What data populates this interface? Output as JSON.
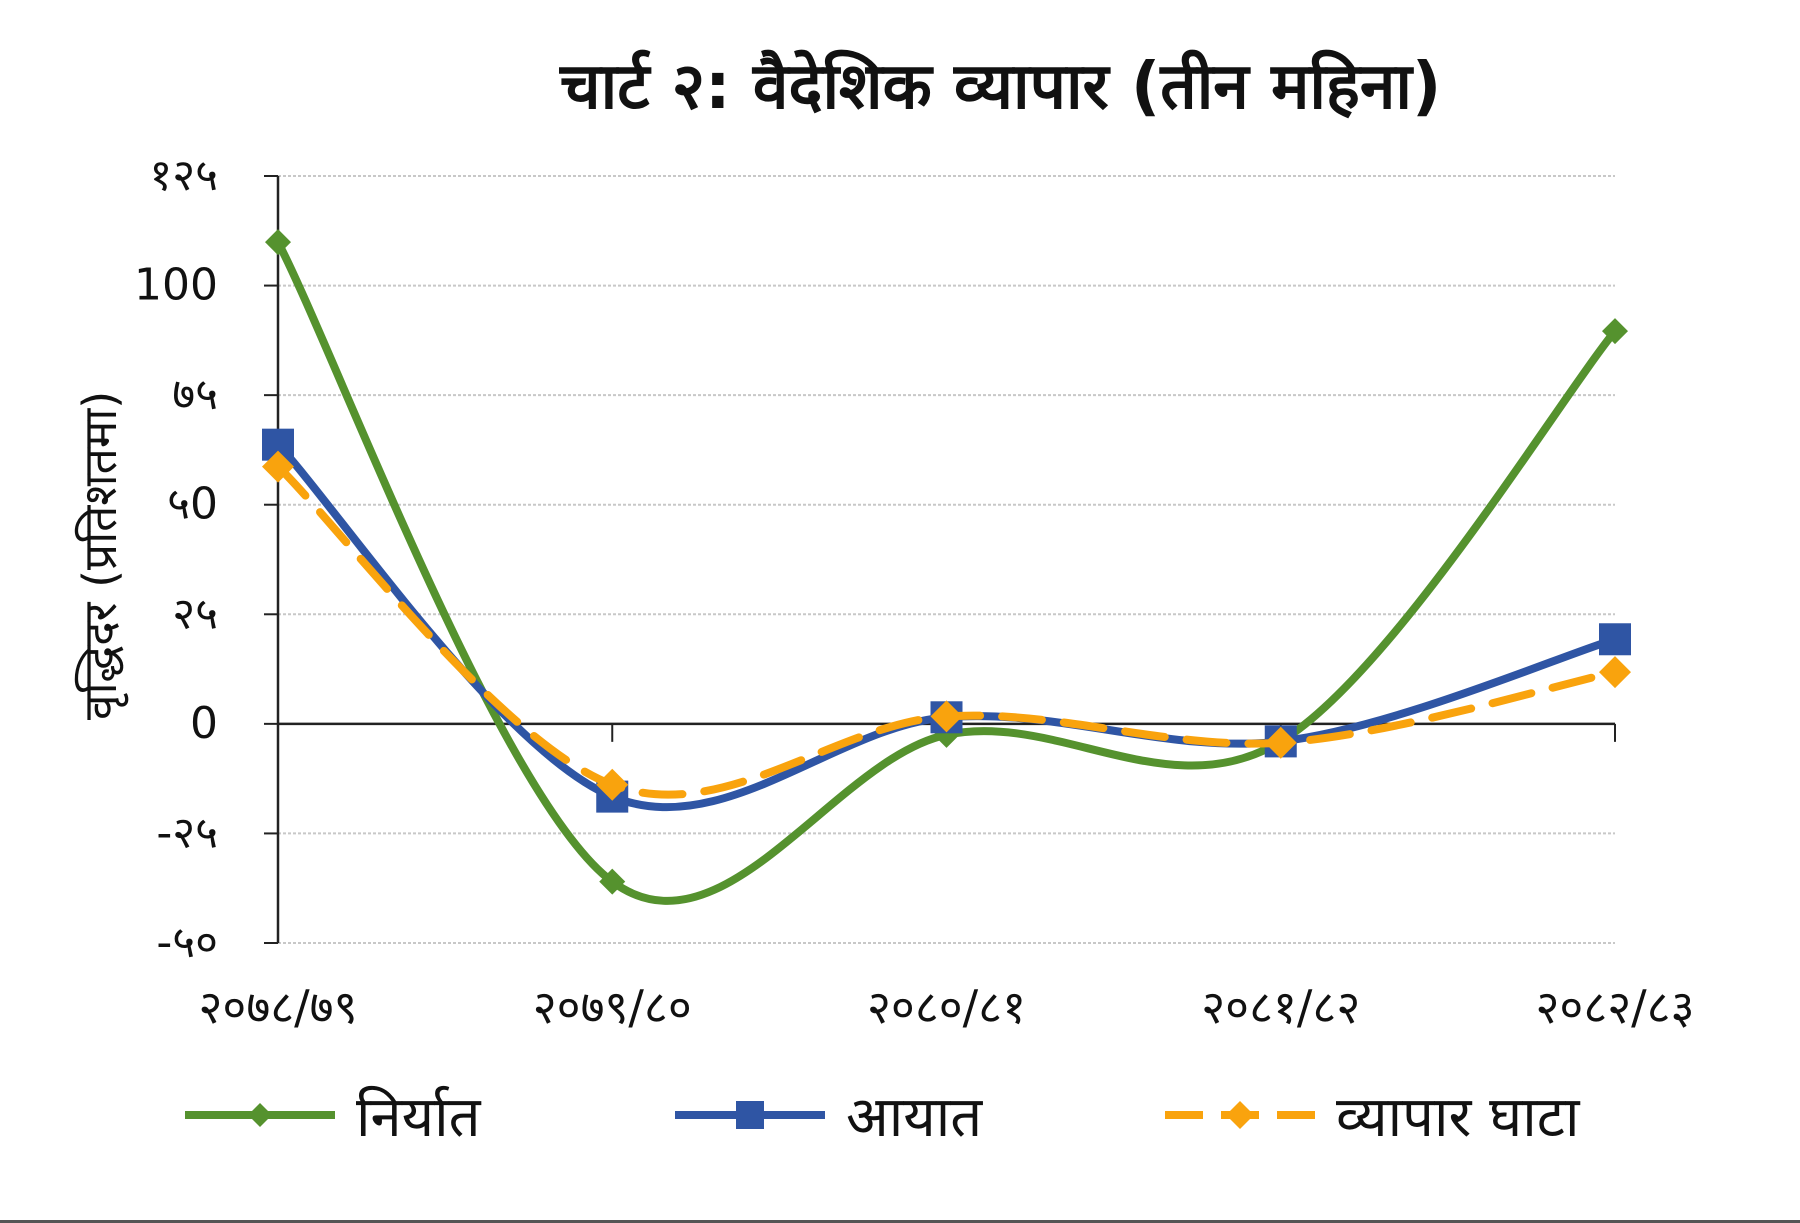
{
  "chart_data": {
    "type": "line",
    "title": "चार्ट २: वैदेशिक व्यापार (तीन महिना)",
    "ylabel": "वृद्धिदर (प्रतिशतमा)",
    "xlabel": "",
    "categories": [
      "२०७८/७९",
      "२०७९/८०",
      "२०८०/८१",
      "२०८१/८२",
      "२०८२/८३"
    ],
    "ylim": [
      -50,
      125
    ],
    "yticks": [
      -50,
      -25,
      0,
      25,
      50,
      75,
      100,
      125
    ],
    "ytick_labels": [
      "-५०",
      "-२५",
      "0",
      "२५",
      "५0",
      "७५",
      "100",
      "१२५"
    ],
    "grid": true,
    "legend_position": "bottom",
    "series": [
      {
        "name": "निर्यात",
        "values": [
          109.9,
          -36.0,
          -2.5,
          -4.0,
          89.6
        ],
        "color": "#55922e",
        "marker": "diamond",
        "dash": "solid"
      },
      {
        "name": "आयात",
        "values": [
          63.7,
          -16.6,
          1.5,
          -4.0,
          19.3
        ],
        "color": "#2f55a4",
        "marker": "square",
        "dash": "solid"
      },
      {
        "name": "व्यापार घाटा",
        "values": [
          58.7,
          -13.9,
          1.7,
          -4.3,
          11.8
        ],
        "color": "#f9a30d",
        "marker": "diamond",
        "dash": "dashed"
      }
    ]
  }
}
